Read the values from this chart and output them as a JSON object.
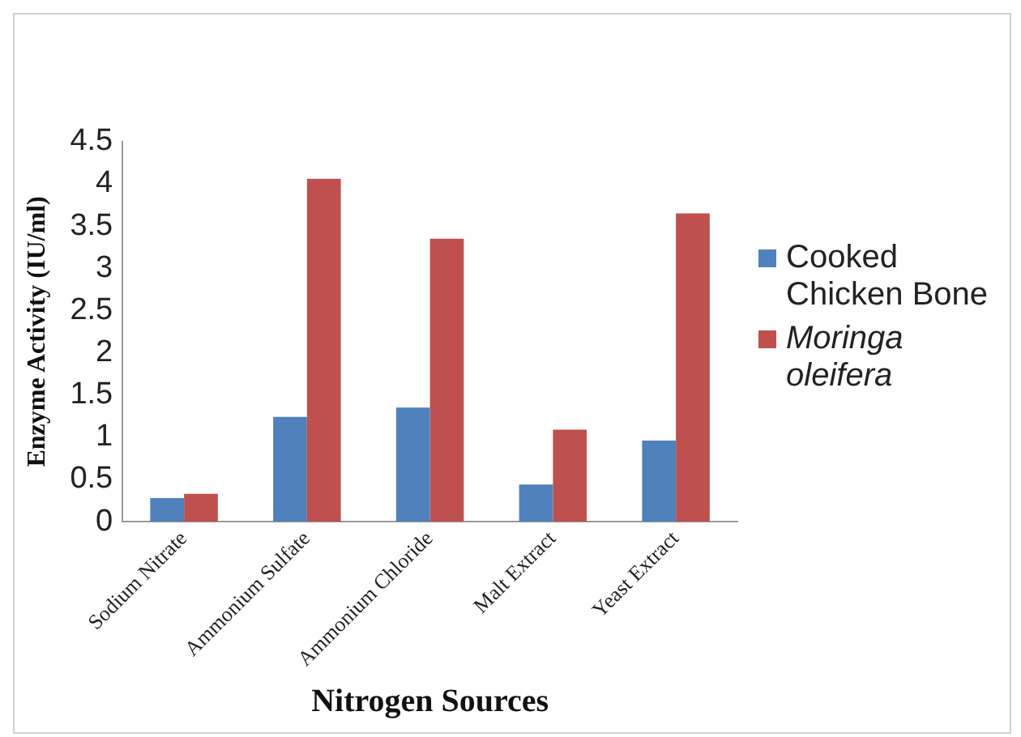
{
  "chart_data": {
    "type": "bar",
    "xlabel": "Nitrogen Sources",
    "ylabel": "Enzyme Activity (IU/ml)",
    "categories": [
      "Sodium Nitrate",
      "Ammonium Sulfate",
      "Ammonium Chloride",
      "Malt Extract",
      "Yeast Extract"
    ],
    "series": [
      {
        "name": "Cooked Chicken Bone",
        "color": "#4f81bd",
        "values": [
          0.28,
          1.24,
          1.35,
          0.44,
          0.96
        ]
      },
      {
        "name": "Moringa oleifera",
        "color": "#c0504d",
        "values": [
          0.33,
          4.06,
          3.35,
          1.09,
          3.65
        ]
      }
    ],
    "ylim": [
      0,
      4.5
    ],
    "yticks": [
      0,
      0.5,
      1,
      1.5,
      2,
      2.5,
      3,
      3.5,
      4,
      4.5
    ],
    "grid": false,
    "legend": "right"
  }
}
